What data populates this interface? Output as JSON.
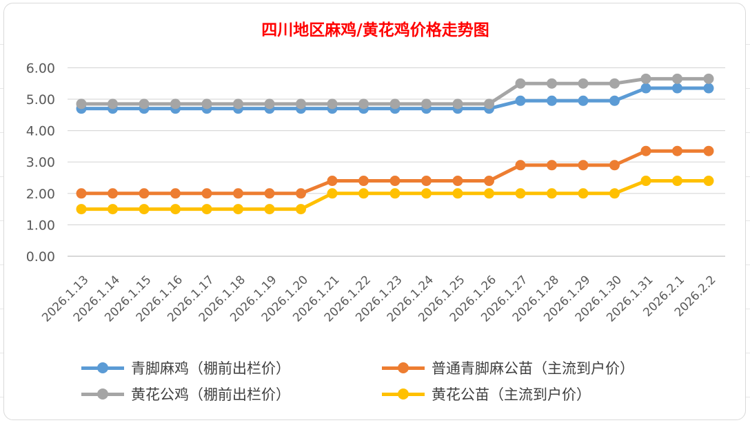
{
  "chart_data": {
    "type": "line",
    "title": "四川地区麻鸡/黄花鸡价格走势图",
    "xlabel": "",
    "ylabel": "",
    "ylim": [
      0,
      6
    ],
    "yticks": [
      "0.00",
      "1.00",
      "2.00",
      "3.00",
      "4.00",
      "5.00",
      "6.00"
    ],
    "grid": true,
    "legend_position": "bottom",
    "categories": [
      "2026.1.13",
      "2026.1.14",
      "2026.1.15",
      "2026.1.16",
      "2026.1.17",
      "2026.1.18",
      "2026.1.19",
      "2026.1.20",
      "2026.1.21",
      "2026.1.22",
      "2026.1.23",
      "2026.1.24",
      "2026.1.25",
      "2026.1.26",
      "2026.1.27",
      "2026.1.28",
      "2026.1.29",
      "2026.1.30",
      "2026.1.31",
      "2026.2.1",
      "2026.2.2"
    ],
    "series": [
      {
        "name": "青脚麻鸡（棚前出栏价）",
        "color": "#5b9bd5",
        "values": [
          4.7,
          4.7,
          4.7,
          4.7,
          4.7,
          4.7,
          4.7,
          4.7,
          4.7,
          4.7,
          4.7,
          4.7,
          4.7,
          4.7,
          4.95,
          4.95,
          4.95,
          4.95,
          5.35,
          5.35,
          5.35
        ]
      },
      {
        "name": "普通青脚麻公苗（主流到户价）",
        "color": "#ed7d31",
        "values": [
          2.0,
          2.0,
          2.0,
          2.0,
          2.0,
          2.0,
          2.0,
          2.0,
          2.4,
          2.4,
          2.4,
          2.4,
          2.4,
          2.4,
          2.9,
          2.9,
          2.9,
          2.9,
          3.35,
          3.35,
          3.35
        ]
      },
      {
        "name": "黄花公鸡（棚前出栏价）",
        "color": "#a5a5a5",
        "values": [
          4.85,
          4.85,
          4.85,
          4.85,
          4.85,
          4.85,
          4.85,
          4.85,
          4.85,
          4.85,
          4.85,
          4.85,
          4.85,
          4.85,
          5.5,
          5.5,
          5.5,
          5.5,
          5.65,
          5.65,
          5.65
        ]
      },
      {
        "name": "黄花公苗（主流到户价）",
        "color": "#ffc000",
        "values": [
          1.5,
          1.5,
          1.5,
          1.5,
          1.5,
          1.5,
          1.5,
          1.5,
          2.0,
          2.0,
          2.0,
          2.0,
          2.0,
          2.0,
          2.0,
          2.0,
          2.0,
          2.0,
          2.4,
          2.4,
          2.4
        ]
      }
    ]
  }
}
